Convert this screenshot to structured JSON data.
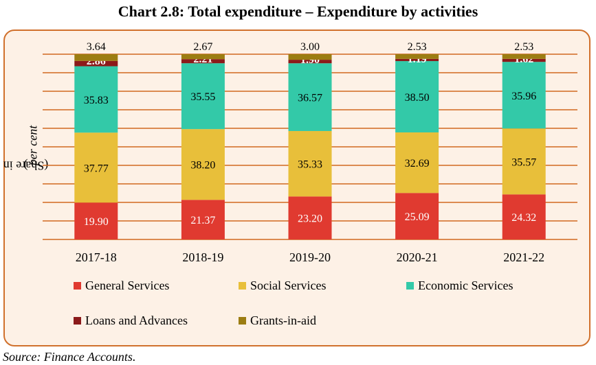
{
  "figure": {
    "title": "Chart 2.8: Total expenditure – Expenditure by activities",
    "source": "Source: Finance Accounts."
  },
  "chart_data": {
    "type": "bar",
    "stacked": true,
    "title": "Chart 2.8: Total expenditure – Expenditure by activities",
    "ylabel_prefix": "(Share in ",
    "ylabel_italic": "per cent",
    "ylabel_suffix": ")",
    "xlabel": "",
    "ylim": [
      0,
      100
    ],
    "grid": true,
    "legend_position": "bottom",
    "categories": [
      "2017-18",
      "2018-19",
      "2019-20",
      "2020-21",
      "2021-22"
    ],
    "series": [
      {
        "name": "General Services",
        "color": "#e03a30",
        "label_color": "#ffffff",
        "values": [
          19.9,
          21.37,
          23.2,
          25.09,
          24.32
        ]
      },
      {
        "name": "Social Services",
        "color": "#e8bf3a",
        "label_color": "#000000",
        "values": [
          37.77,
          38.2,
          35.33,
          32.69,
          35.57
        ]
      },
      {
        "name": "Economic Services",
        "color": "#33c9a8",
        "label_color": "#000000",
        "values": [
          35.83,
          35.55,
          36.57,
          38.5,
          35.96
        ]
      },
      {
        "name": "Loans and Advances",
        "color": "#8b1a1a",
        "label_color": "#ffffff",
        "values": [
          2.86,
          2.21,
          1.9,
          1.19,
          1.62
        ]
      },
      {
        "name": "Grants-in-aid",
        "color": "#9c7d12",
        "label_color": "#000000",
        "values": [
          3.64,
          2.67,
          3.0,
          2.53,
          2.53
        ]
      }
    ]
  }
}
